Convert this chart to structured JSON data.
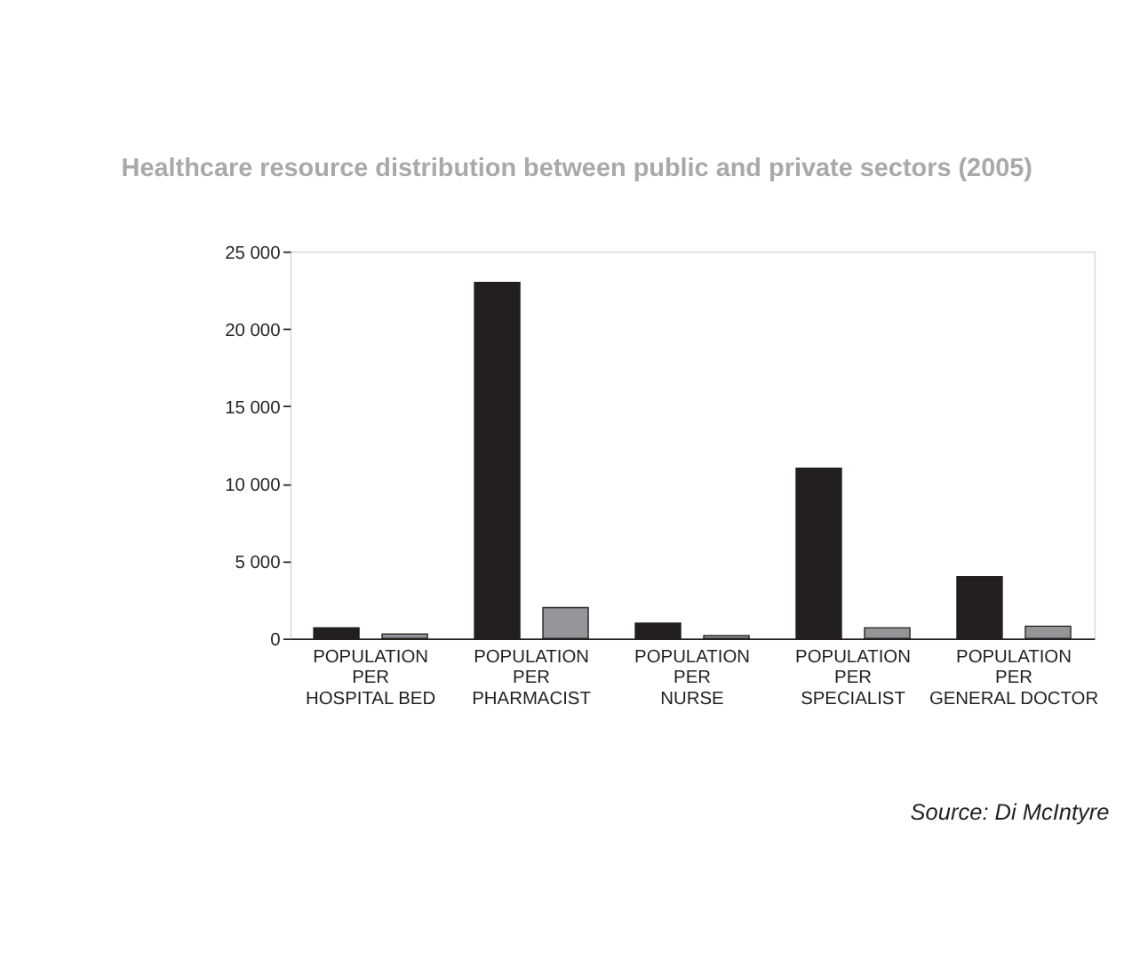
{
  "chart_data": {
    "type": "bar",
    "title": "Healthcare resource distribution between public and private sectors (2005)",
    "categories": [
      "POPULATION\nPER\nHOSPITAL BED",
      "POPULATION\nPER\nPHARMACIST",
      "POPULATION\nPER\nNURSE",
      "POPULATION\nPER\nSPECIALIST",
      "POPULATION\nPER\nGENERAL DOCTOR"
    ],
    "series": [
      {
        "color": "#231f20",
        "values": [
          700,
          23000,
          1000,
          11000,
          4000
        ]
      },
      {
        "color": "#939598",
        "values": [
          300,
          2000,
          200,
          700,
          800
        ]
      }
    ],
    "ylim": [
      0,
      25000
    ],
    "yticks": [
      0,
      {
        "value": 5000,
        "label": "5 000"
      },
      {
        "value": 10000,
        "label": "10 000"
      },
      {
        "value": 15000,
        "label": "15 000"
      },
      {
        "value": 20000,
        "label": "20 000"
      },
      {
        "value": 25000,
        "label": "25 000"
      }
    ],
    "grid": false,
    "legend": false,
    "annotations": [
      "Source: Di McIntyre"
    ]
  }
}
